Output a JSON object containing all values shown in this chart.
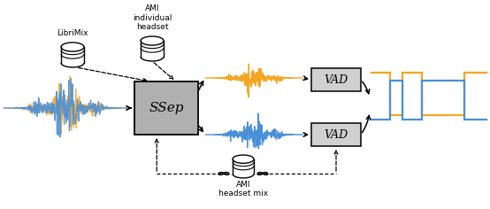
{
  "orange_color": "#F5A623",
  "blue_color": "#4A90D9",
  "gray_box_color": "#B0B0B0",
  "vad_box_color": "#D0D0D0",
  "bg_color": "#FFFFFF",
  "ssep_label": "SSep",
  "vad_label": "VAD",
  "librimix_label": "LibriMix",
  "ami_individual_line1": "AMI",
  "ami_individual_line2": "individual",
  "ami_individual_line3": "headset",
  "ami_headset_line1": "AMI",
  "ami_headset_line2": "headset mix",
  "fig_w": 5.54,
  "fig_h": 2.36,
  "dpi": 100
}
